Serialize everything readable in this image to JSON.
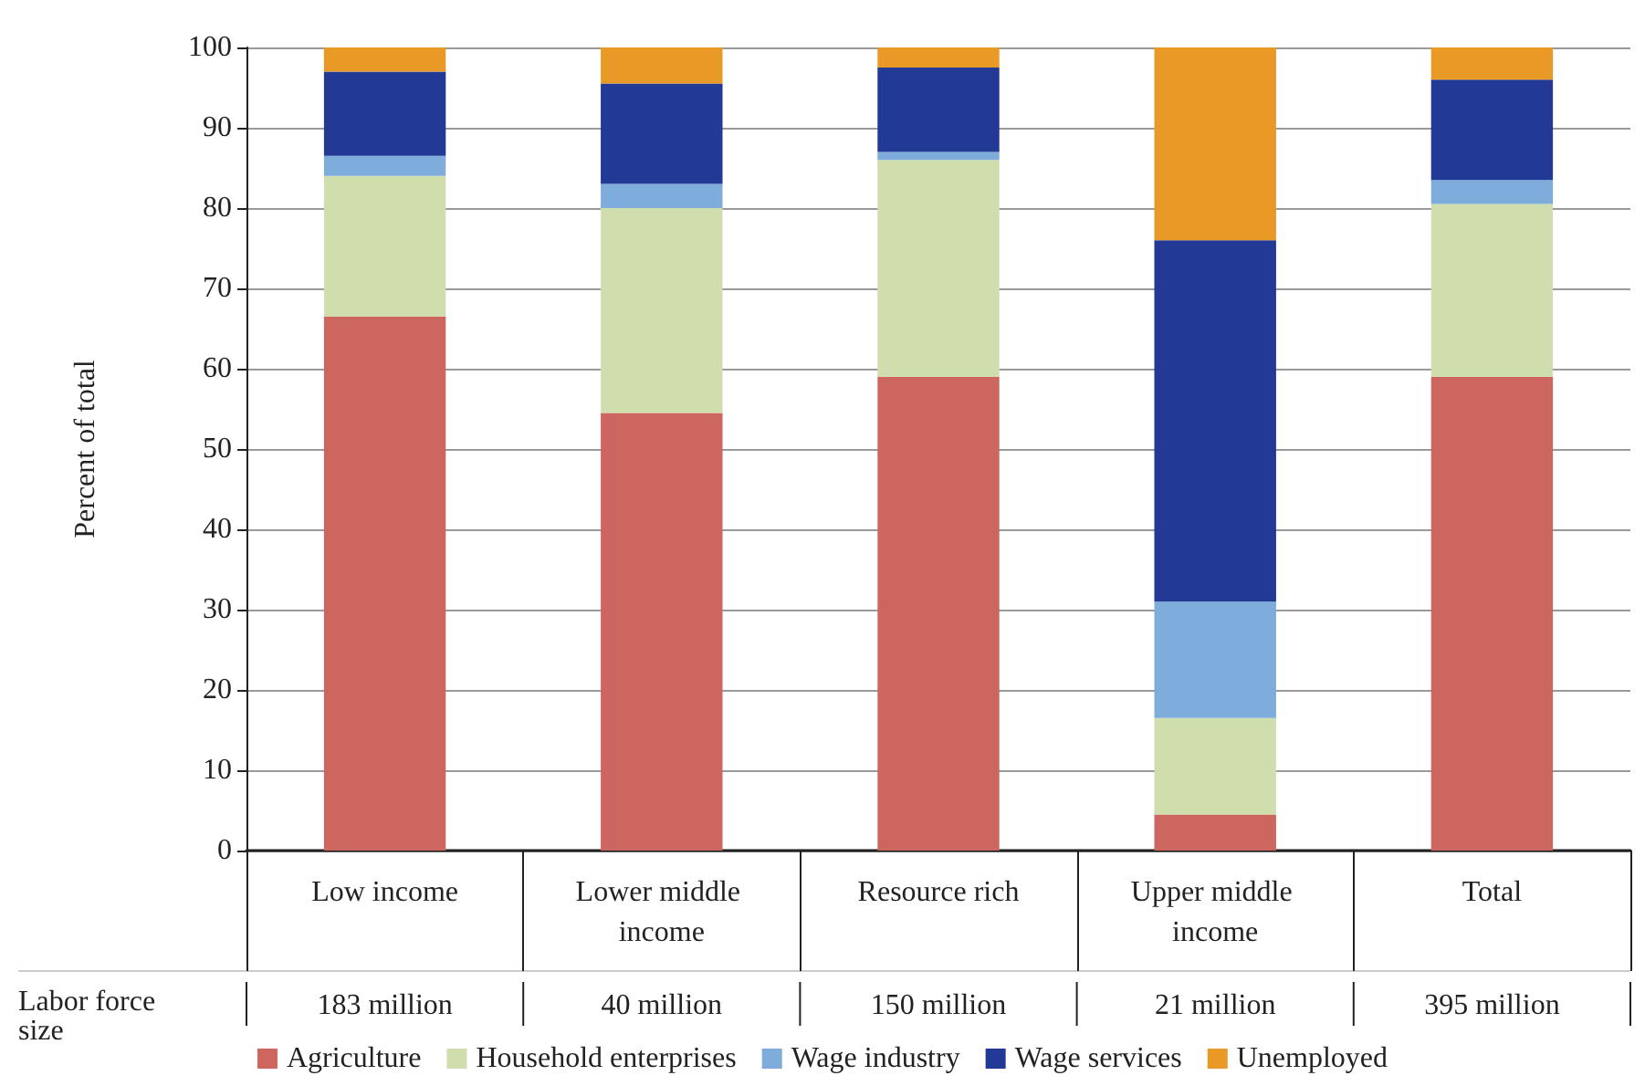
{
  "chart_data": {
    "type": "bar",
    "stacked": true,
    "ylabel": "Percent of total",
    "categories": [
      "Low income",
      "Lower middle income",
      "Resource rich",
      "Upper middle income",
      "Total"
    ],
    "series": [
      {
        "name": "Agriculture",
        "color": "#cd665e",
        "values": [
          66.5,
          54.5,
          59,
          4.5,
          59
        ]
      },
      {
        "name": "Household enterprises",
        "color": "#cfdeac",
        "values": [
          17.5,
          25.5,
          27,
          12,
          21.5
        ]
      },
      {
        "name": "Wage industry",
        "color": "#7eaddb",
        "values": [
          2.5,
          3,
          1,
          14.5,
          3
        ]
      },
      {
        "name": "Wage services",
        "color": "#223a96",
        "values": [
          10.5,
          12.5,
          10.5,
          45,
          12.5
        ]
      },
      {
        "name": "Unemployed",
        "color": "#e99a26",
        "values": [
          3,
          4.5,
          2.5,
          24,
          4
        ]
      }
    ],
    "ylim": [
      0,
      100
    ],
    "yticks": [
      0,
      10,
      20,
      30,
      40,
      50,
      60,
      70,
      80,
      90,
      100
    ],
    "grid": "y",
    "legend": "bottom",
    "annotations": [
      "Labor force size",
      "183 million",
      "40 million",
      "150 million",
      "21 million",
      "395 million"
    ]
  }
}
